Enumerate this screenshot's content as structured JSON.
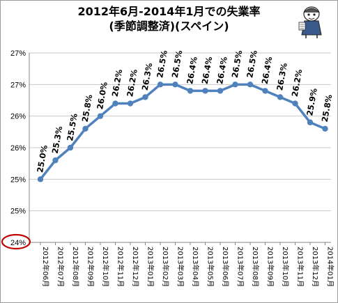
{
  "chart_data": {
    "type": "line",
    "title": [
      "2012年6月-2014年1月での失業率",
      "(季節調整済)(スペイン)"
    ],
    "xlabel": "",
    "ylabel": "",
    "categories": [
      "2012年06月",
      "2012年07月",
      "2012年08月",
      "2012年09月",
      "2012年10月",
      "2012年11月",
      "2012年12月",
      "2013年01月",
      "2013年02月",
      "2013年03月",
      "2013年04月",
      "2013年05月",
      "2013年06月",
      "2013年07月",
      "2013年08月",
      "2013年09月",
      "2013年10月",
      "2013年11月",
      "2013年12月",
      "2014年01月"
    ],
    "series": [
      {
        "values": [
          25.0,
          25.3,
          25.5,
          25.8,
          26.0,
          26.2,
          26.2,
          26.3,
          26.5,
          26.5,
          26.4,
          26.4,
          26.4,
          26.5,
          26.5,
          26.4,
          26.3,
          26.2,
          25.9,
          25.8
        ]
      }
    ],
    "data_labels": [
      "25.0%",
      "25.3%",
      "25.5%",
      "25.8%",
      "26.0%",
      "26.2%",
      "26.2%",
      "26.3%",
      "26.5%",
      "26.5%",
      "26.4%",
      "26.4%",
      "26.4%",
      "26.5%",
      "26.5%",
      "26.4%",
      "26.3%",
      "26.2%",
      "25.9%",
      "25.8%"
    ],
    "ylim": [
      24.0,
      27.0
    ],
    "y_ticks": [
      24.0,
      24.5,
      25.0,
      25.5,
      26.0,
      26.5,
      27.0
    ],
    "y_tick_labels": [
      "24%",
      "25%",
      "25%",
      "26%",
      "26%",
      "27%",
      "27%"
    ],
    "grid": "horizontal",
    "legend": false,
    "colors": {
      "line": "#4f81bd",
      "marker": "#4f81bd",
      "highlight_ellipse": "#c00000",
      "grid": "#c8c8c8"
    }
  }
}
